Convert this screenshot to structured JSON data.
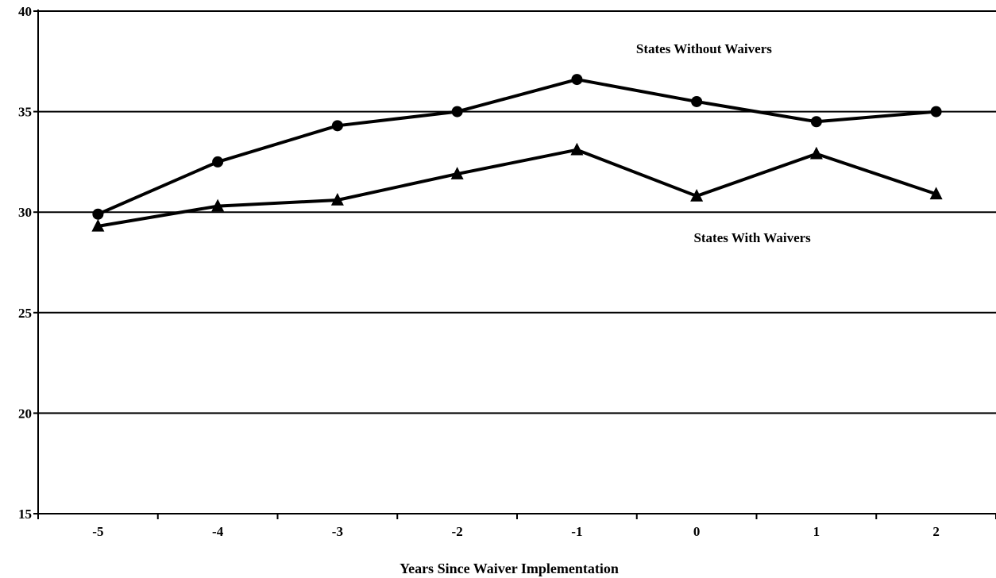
{
  "chart_data": {
    "type": "line",
    "title": "",
    "xlabel": "Years Since Waiver Implementation",
    "ylabel": "",
    "x": [
      -5,
      -4,
      -3,
      -2,
      -1,
      0,
      1,
      2
    ],
    "ylim": [
      15,
      40
    ],
    "yticks": [
      15,
      20,
      25,
      30,
      35,
      40
    ],
    "grid": "horizontal",
    "series": [
      {
        "name": "States Without Waivers",
        "marker": "circle",
        "color": "#000000",
        "values": [
          29.9,
          32.5,
          34.3,
          35.0,
          36.6,
          35.5,
          34.5,
          35.0
        ]
      },
      {
        "name": "States With Waivers",
        "marker": "triangle",
        "color": "#000000",
        "values": [
          29.3,
          30.3,
          30.6,
          31.9,
          33.1,
          30.8,
          32.9,
          30.9
        ]
      }
    ]
  }
}
